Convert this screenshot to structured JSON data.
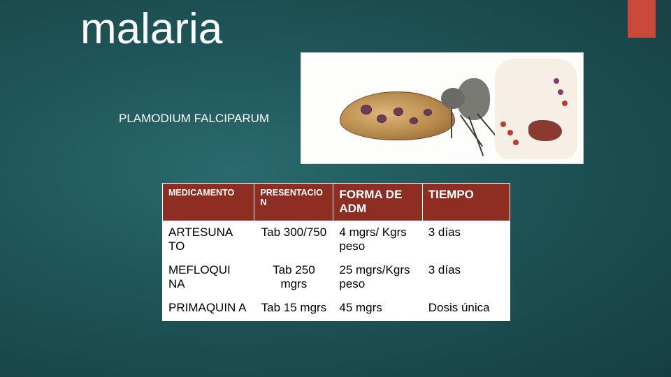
{
  "accent_color": "#c94a3b",
  "title": "malaria",
  "subtitle": "PLAMODIUM FALCIPARUM",
  "diagram": {
    "background": "#fdfdfb",
    "mosquito_abdomen_color": "#b88a4c",
    "liver_color": "#8a3a2e"
  },
  "table": {
    "header_bg": "#8e2d22",
    "header_color": "#ffffff",
    "cell_bg": "#ffffff",
    "columns": [
      {
        "label": "MEDICAMENTO",
        "size": "small"
      },
      {
        "label": "PRESENTACIO N",
        "size": "small"
      },
      {
        "label": "FORMA DE ADM",
        "size": "large"
      },
      {
        "label": "TIEMPO",
        "size": "large"
      }
    ],
    "rows": [
      {
        "c1": "ARTESUNA TO",
        "c2": "Tab 300/750",
        "c3": "4 mgrs/ Kgrs peso",
        "c4": "3 días"
      },
      {
        "c1": "MEFLOQUI NA",
        "c2": "Tab 250 mgrs",
        "c3": "25 mgrs/Kgrs peso",
        "c4": "3 días"
      },
      {
        "c1": "PRIMAQUIN A",
        "c2": "Tab 15 mgrs",
        "c3": "45 mgrs",
        "c4": "Dosis única"
      }
    ]
  }
}
